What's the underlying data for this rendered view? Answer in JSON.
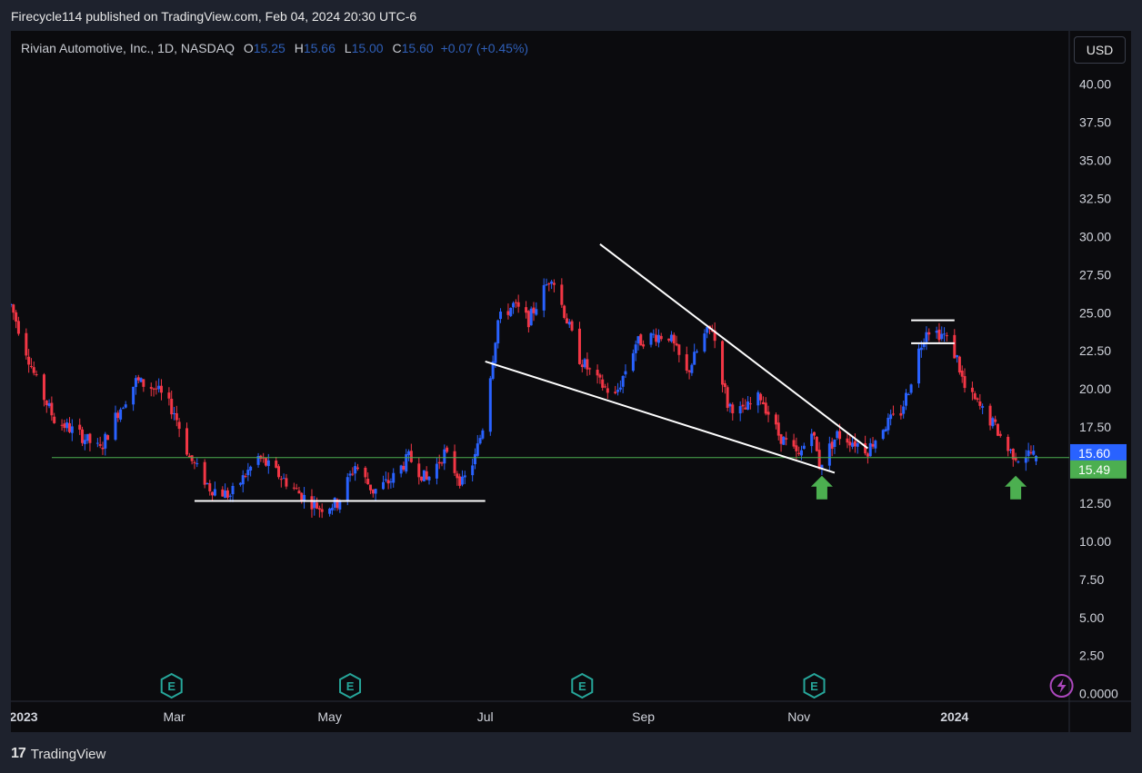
{
  "header": {
    "publisher_line": "Firecycle114 published on TradingView.com, Feb 04, 2024 20:30 UTC-6"
  },
  "legend": {
    "symbol": "Rivian Automotive, Inc., 1D, NASDAQ",
    "open_label": "O",
    "open": "15.25",
    "high_label": "H",
    "high": "15.66",
    "low_label": "L",
    "low": "15.00",
    "close_label": "C",
    "close": "15.60",
    "change": "+0.07 (+0.45%)"
  },
  "currency_button": "USD",
  "footer": {
    "brand": "TradingView",
    "logo_text": "17"
  },
  "colors": {
    "up": "#2962ff",
    "down": "#f23645",
    "hline": "#4caf50",
    "trendline": "#ffffff",
    "arrow": "#4caf50",
    "last_price_tag": "#2962ff",
    "level_tag": "#4caf50",
    "earnings_badge": "#26a69a",
    "flash_badge": "#ab47bc"
  },
  "icons": [
    "earnings-e-icon",
    "lightning-icon",
    "up-arrow-icon"
  ],
  "chart_data": {
    "type": "candlestick",
    "symbol": "Rivian Automotive, Inc.",
    "interval": "1D",
    "exchange": "NASDAQ",
    "currency": "USD",
    "y_axis": {
      "ticks": [
        "40.00",
        "37.50",
        "35.00",
        "32.50",
        "30.00",
        "27.50",
        "25.00",
        "22.50",
        "20.00",
        "17.50",
        "15.00",
        "12.50",
        "10.00",
        "7.50",
        "5.00",
        "2.50",
        "0.0000"
      ],
      "range": [
        -0.5,
        43.5
      ]
    },
    "x_axis": {
      "range": [
        "2022-12-27",
        "2024-02-15"
      ],
      "ticks": [
        {
          "label": "2023",
          "date": "2023-01-01"
        },
        {
          "label": "Mar",
          "date": "2023-03-01"
        },
        {
          "label": "May",
          "date": "2023-05-01"
        },
        {
          "label": "Jul",
          "date": "2023-07-01"
        },
        {
          "label": "Sep",
          "date": "2023-09-01"
        },
        {
          "label": "Nov",
          "date": "2023-11-01"
        },
        {
          "label": "2024",
          "date": "2024-01-01"
        }
      ]
    },
    "price_path": [
      [
        "2022-12-27",
        25.5
      ],
      [
        "2023-01-06",
        20.5
      ],
      [
        "2023-01-13",
        18.0
      ],
      [
        "2023-01-23",
        17.0
      ],
      [
        "2023-01-31",
        16.0
      ],
      [
        "2023-02-07",
        18.5
      ],
      [
        "2023-02-14",
        20.5
      ],
      [
        "2023-02-22",
        20.0
      ],
      [
        "2023-03-01",
        18.5
      ],
      [
        "2023-03-07",
        15.5
      ],
      [
        "2023-03-15",
        13.5
      ],
      [
        "2023-03-23",
        13.0
      ],
      [
        "2023-04-03",
        15.5
      ],
      [
        "2023-04-10",
        14.5
      ],
      [
        "2023-04-20",
        13.0
      ],
      [
        "2023-04-27",
        12.2
      ],
      [
        "2023-05-04",
        12.5
      ],
      [
        "2023-05-11",
        15.0
      ],
      [
        "2023-05-18",
        13.3
      ],
      [
        "2023-05-25",
        14.0
      ],
      [
        "2023-06-01",
        15.5
      ],
      [
        "2023-06-08",
        14.0
      ],
      [
        "2023-06-15",
        15.8
      ],
      [
        "2023-06-22",
        13.8
      ],
      [
        "2023-06-27",
        15.5
      ],
      [
        "2023-06-30",
        17.5
      ],
      [
        "2023-07-03",
        21.0
      ],
      [
        "2023-07-06",
        24.5
      ],
      [
        "2023-07-12",
        25.5
      ],
      [
        "2023-07-18",
        24.5
      ],
      [
        "2023-07-27",
        27.5
      ],
      [
        "2023-08-01",
        25.0
      ],
      [
        "2023-08-07",
        22.0
      ],
      [
        "2023-08-14",
        20.5
      ],
      [
        "2023-08-21",
        19.5
      ],
      [
        "2023-08-29",
        23.0
      ],
      [
        "2023-09-05",
        23.5
      ],
      [
        "2023-09-11",
        23.5
      ],
      [
        "2023-09-18",
        21.0
      ],
      [
        "2023-09-25",
        23.5
      ],
      [
        "2023-09-28",
        24.0
      ],
      [
        "2023-10-04",
        19.0
      ],
      [
        "2023-10-10",
        18.5
      ],
      [
        "2023-10-17",
        19.5
      ],
      [
        "2023-10-24",
        17.0
      ],
      [
        "2023-11-01",
        15.5
      ],
      [
        "2023-11-06",
        17.5
      ],
      [
        "2023-11-09",
        15.0
      ],
      [
        "2023-11-16",
        17.0
      ],
      [
        "2023-11-23",
        16.5
      ],
      [
        "2023-11-28",
        16.0
      ],
      [
        "2023-12-04",
        17.5
      ],
      [
        "2023-12-11",
        18.5
      ],
      [
        "2023-12-14",
        20.0
      ],
      [
        "2023-12-18",
        22.5
      ],
      [
        "2023-12-21",
        24.0
      ],
      [
        "2023-12-28",
        23.5
      ],
      [
        "2024-01-02",
        22.0
      ],
      [
        "2024-01-05",
        20.0
      ],
      [
        "2024-01-10",
        19.0
      ],
      [
        "2024-01-17",
        17.5
      ],
      [
        "2024-01-22",
        16.0
      ],
      [
        "2024-01-26",
        15.5
      ],
      [
        "2024-01-31",
        15.8
      ],
      [
        "2024-02-02",
        15.6
      ]
    ],
    "last_bar": {
      "open": 15.25,
      "high": 15.66,
      "low": 15.0,
      "close": 15.6,
      "change": 0.07,
      "change_pct": 0.45
    },
    "price_labels": [
      {
        "value": 15.6,
        "text": "15.60",
        "kind": "last-price"
      },
      {
        "value": 15.49,
        "text": "15.49",
        "kind": "horizontal-level"
      }
    ],
    "drawings": {
      "horizontal_level": 15.49,
      "support_line": {
        "from": [
          "2023-03-09",
          12.65
        ],
        "to": [
          "2023-07-01",
          12.65
        ]
      },
      "lower_wedge_line": {
        "from": [
          "2023-07-01",
          21.8
        ],
        "to": [
          "2023-11-15",
          14.5
        ]
      },
      "upper_wedge_line": {
        "from": [
          "2023-08-15",
          29.5
        ],
        "to": [
          "2023-11-28",
          16.1
        ]
      },
      "flag_top": {
        "from": [
          "2023-12-15",
          24.5
        ],
        "to": [
          "2024-01-01",
          24.5
        ]
      },
      "flag_bottom": {
        "from": [
          "2023-12-15",
          23.0
        ],
        "to": [
          "2024-01-01",
          23.0
        ]
      },
      "arrows": [
        {
          "date": "2023-11-10",
          "value": 14.3
        },
        {
          "date": "2024-01-25",
          "value": 14.3
        }
      ]
    },
    "events": [
      {
        "type": "earnings",
        "label": "E",
        "date": "2023-02-28"
      },
      {
        "type": "earnings",
        "label": "E",
        "date": "2023-05-09"
      },
      {
        "type": "earnings",
        "label": "E",
        "date": "2023-08-08"
      },
      {
        "type": "earnings",
        "label": "E",
        "date": "2023-11-07"
      },
      {
        "type": "flash",
        "date": "2024-02-12"
      }
    ]
  }
}
